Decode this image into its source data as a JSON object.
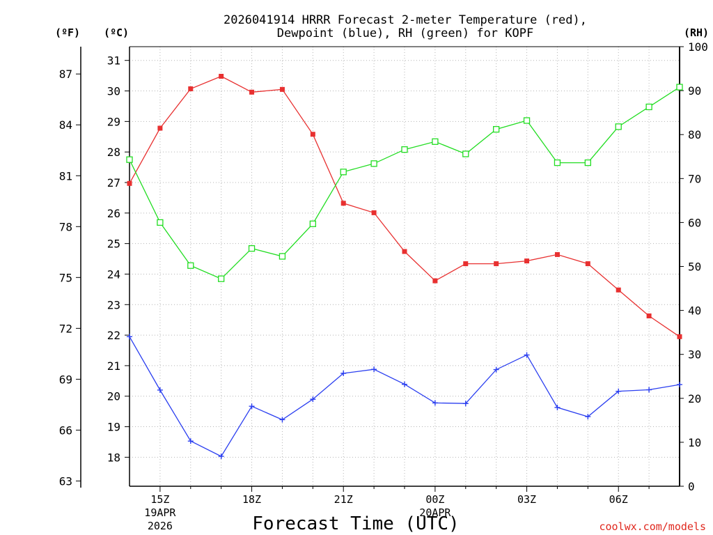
{
  "chart_data": {
    "type": "line",
    "title_line1": "2026041914 HRRR Forecast 2-meter Temperature (red),",
    "title_line2": "Dewpoint (blue), RH (green) for KOPF",
    "xlabel": "Forecast Time (UTC)",
    "credit": "coolwx.com/models",
    "units": {
      "fahrenheit": "(ºF)",
      "celsius": "(ºC)",
      "rh": "(RH)"
    },
    "x": [
      14,
      15,
      16,
      17,
      18,
      19,
      20,
      21,
      22,
      23,
      24,
      25,
      26,
      27,
      28,
      29,
      30,
      31,
      32
    ],
    "xlim": [
      14,
      32
    ],
    "x_ticks": [
      {
        "x": 15,
        "label": "15Z",
        "date1": "19APR",
        "date2": "2026"
      },
      {
        "x": 18,
        "label": "18Z",
        "date1": "",
        "date2": ""
      },
      {
        "x": 21,
        "label": "21Z",
        "date1": "",
        "date2": ""
      },
      {
        "x": 24,
        "label": "00Z",
        "date1": "20APR",
        "date2": ""
      },
      {
        "x": 27,
        "label": "03Z",
        "date1": "",
        "date2": ""
      },
      {
        "x": 30,
        "label": "06Z",
        "date1": "",
        "date2": ""
      }
    ],
    "celsius_axis": {
      "ylim": [
        17.05,
        31.45
      ],
      "ticks": [
        18,
        19,
        20,
        21,
        22,
        23,
        24,
        25,
        26,
        27,
        28,
        29,
        30,
        31
      ]
    },
    "fahrenheit_axis": {
      "ticks": [
        63,
        66,
        69,
        72,
        75,
        78,
        81,
        84,
        87
      ]
    },
    "rh_axis": {
      "ylim": [
        0,
        100
      ],
      "ticks": [
        0,
        10,
        20,
        30,
        40,
        50,
        60,
        70,
        80,
        90,
        100
      ]
    },
    "series": [
      {
        "name": "2-meter Temperature",
        "axis": "celsius",
        "color": "#e83030",
        "marker": "filled-square",
        "values": [
          26.97,
          28.78,
          30.07,
          30.48,
          29.96,
          30.05,
          28.58,
          26.32,
          26.01,
          24.74,
          23.78,
          24.34,
          24.34,
          24.43,
          24.64,
          24.34,
          23.48,
          22.63,
          21.95
        ]
      },
      {
        "name": "Dewpoint",
        "axis": "celsius",
        "color": "#2a3ef0",
        "marker": "plus",
        "values": [
          21.95,
          20.2,
          18.53,
          18.03,
          19.67,
          19.23,
          19.9,
          20.75,
          20.88,
          20.39,
          19.78,
          19.76,
          20.87,
          21.35,
          19.63,
          19.33,
          20.16,
          20.21,
          20.38
        ]
      },
      {
        "name": "RH",
        "axis": "rh",
        "color": "#22dd22",
        "marker": "open-square",
        "values": [
          74.3,
          60.0,
          50.2,
          47.2,
          54.1,
          52.3,
          59.7,
          71.5,
          73.4,
          76.6,
          78.4,
          75.6,
          81.2,
          83.2,
          73.6,
          73.6,
          81.8,
          86.3,
          90.8
        ]
      }
    ]
  }
}
